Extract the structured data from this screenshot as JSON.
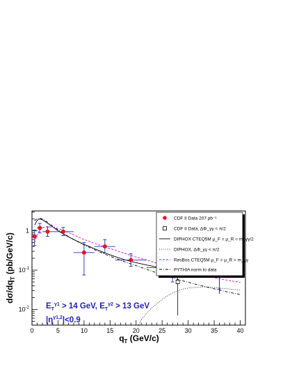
{
  "chart_data": {
    "type": "scatter",
    "xlabel": "q_T (GeV/c)",
    "ylabel": "dσ/dq_T (pb/GeV/c)",
    "xlim": [
      0,
      41
    ],
    "ylim": [
      0.004,
      3.2
    ],
    "yscale": "log",
    "x_ticks": [
      "0",
      "5",
      "10",
      "15",
      "20",
      "25",
      "30",
      "35",
      "40"
    ],
    "y_ticks": [
      "10⁻²",
      "10⁻¹",
      "1"
    ],
    "cut_text": [
      "E_T^{γ1} > 14 GeV, E_T^{γ2} > 13 GeV",
      "|η^{γ1,2}|<0.9"
    ],
    "legend": [
      "CDF II Data 207 pb⁻¹",
      "CDF II Data, ΔΦ_γγ < π/2",
      "DIPHOX CTEQ5M μ_F = μ_R = m_γγ/2",
      "DIPHOX, ΔΦ_γγ < π/2",
      "ResBos CTEQ5M μ_F = μ_R = m_γγ",
      "PYTHIA norm to data"
    ],
    "colors": {
      "data": "#e8141e",
      "error": "#1c2fb4",
      "resbos": "#e000e0",
      "cuts": "#1f1fbf"
    },
    "series": [
      {
        "name": "CDF II Data 207 pb⁻¹",
        "style": "filled-circle",
        "points": [
          {
            "x": 0.5,
            "y": 0.72,
            "xlo": 0,
            "xhi": 1,
            "ylo": 0.42,
            "yhi": 1.05
          },
          {
            "x": 1.5,
            "y": 1.18,
            "xlo": 1,
            "xhi": 2,
            "ylo": 0.88,
            "yhi": 1.55
          },
          {
            "x": 3,
            "y": 0.95,
            "xlo": 2,
            "xhi": 4,
            "ylo": 0.72,
            "yhi": 1.25
          },
          {
            "x": 6,
            "y": 0.95,
            "xlo": 4,
            "xhi": 8,
            "ylo": 0.75,
            "yhi": 1.22
          },
          {
            "x": 10,
            "y": 0.28,
            "xlo": 8,
            "xhi": 12,
            "ylo": 0.075,
            "yhi": 0.5
          },
          {
            "x": 14,
            "y": 0.4,
            "xlo": 12,
            "xhi": 16,
            "ylo": 0.27,
            "yhi": 0.6
          },
          {
            "x": 19,
            "y": 0.18,
            "xlo": 16,
            "xhi": 22,
            "ylo": 0.125,
            "yhi": 0.26
          },
          {
            "x": 27,
            "y": 0.115,
            "xlo": 22,
            "xhi": 32,
            "ylo": 0.05,
            "yhi": 0.17
          },
          {
            "x": 36,
            "y": 0.095,
            "xlo": 32,
            "xhi": 40,
            "ylo": 0.033,
            "yhi": 0.155
          }
        ]
      },
      {
        "name": "CDF II Data, ΔΦ_γγ < π/2",
        "style": "open-square",
        "points": [
          {
            "x": 28,
            "y": 0.05,
            "xlo": 28,
            "xhi": 28,
            "ylo": 0.007,
            "yhi": 0.095
          },
          {
            "x": 36,
            "y": 0.075,
            "xlo": 36,
            "xhi": 36,
            "ylo": 0.025,
            "yhi": 0.125
          }
        ]
      },
      {
        "name": "DIPHOX CTEQ5M μ_F = μ_R = m_γγ/2",
        "style": "solid",
        "x": [
          0.5,
          1,
          1.5,
          2,
          3,
          4,
          5,
          6,
          7,
          8,
          9,
          10,
          11,
          12,
          13,
          14,
          15,
          16,
          18,
          20,
          22,
          24,
          26,
          28,
          30,
          32,
          34,
          36,
          38,
          40
        ],
        "y": [
          1.4,
          1.85,
          2.0,
          1.9,
          1.55,
          1.25,
          1.0,
          0.83,
          0.7,
          0.6,
          0.52,
          0.45,
          0.4,
          0.35,
          0.31,
          0.275,
          0.245,
          0.22,
          0.18,
          0.155,
          0.135,
          0.12,
          0.108,
          0.097,
          0.09,
          0.085,
          0.08,
          0.077,
          0.075,
          0.073
        ]
      },
      {
        "name": "DIPHOX, ΔΦ_γγ < π/2",
        "style": "dotted",
        "x": [
          20,
          21,
          22,
          23,
          24,
          25,
          26,
          27,
          28,
          29,
          30,
          31,
          32,
          33,
          34,
          35,
          36,
          37,
          38,
          39,
          40
        ],
        "y": [
          0.003,
          0.0055,
          0.008,
          0.011,
          0.014,
          0.018,
          0.022,
          0.026,
          0.03,
          0.033,
          0.035,
          0.036,
          0.037,
          0.0375,
          0.037,
          0.036,
          0.035,
          0.034,
          0.033,
          0.032,
          0.031
        ]
      },
      {
        "name": "ResBos CTEQ5M μ_F = μ_R = m_γγ",
        "style": "dashed",
        "x": [
          0.5,
          1,
          1.5,
          2,
          3,
          4,
          5,
          6,
          7,
          8,
          10,
          12,
          14,
          16,
          18,
          20,
          22,
          24,
          26,
          28,
          30,
          32,
          34,
          36,
          38,
          40
        ],
        "y": [
          0.5,
          0.8,
          1.05,
          1.2,
          1.28,
          1.24,
          1.15,
          1.02,
          0.9,
          0.78,
          0.6,
          0.48,
          0.39,
          0.32,
          0.26,
          0.215,
          0.18,
          0.15,
          0.126,
          0.106,
          0.09,
          0.078,
          0.068,
          0.06,
          0.054,
          0.049
        ]
      },
      {
        "name": "PYTHIA norm to data",
        "style": "dash-dot",
        "x": [
          0.5,
          1,
          1.5,
          2,
          3,
          4,
          5,
          6,
          7,
          8,
          10,
          12,
          14,
          16,
          18,
          20,
          22,
          24,
          26,
          28,
          30,
          32,
          34,
          36,
          38,
          40
        ],
        "y": [
          1.8,
          2.05,
          2.1,
          2.0,
          1.65,
          1.3,
          1.05,
          0.86,
          0.72,
          0.6,
          0.44,
          0.33,
          0.255,
          0.2,
          0.16,
          0.13,
          0.105,
          0.085,
          0.07,
          0.058,
          0.049,
          0.042,
          0.036,
          0.031,
          0.027,
          0.024
        ]
      }
    ]
  }
}
